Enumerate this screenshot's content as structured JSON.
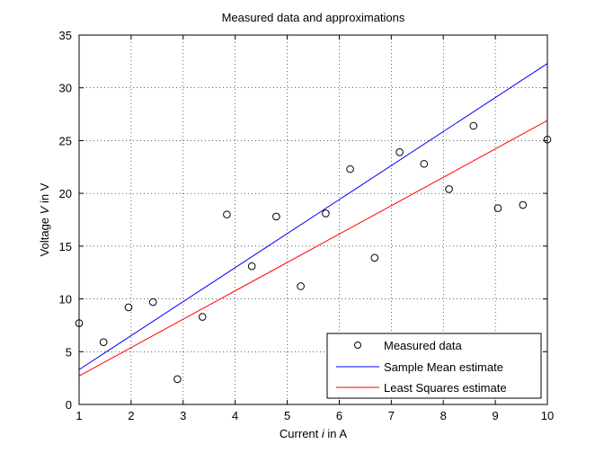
{
  "chart_data": {
    "type": "scatter",
    "title": "Measured data and approximations",
    "xlabel": "Current i in A",
    "xlabel_parts": {
      "pre": "Current ",
      "var": "i",
      "post": " in A"
    },
    "ylabel": "Voltage V in V",
    "ylabel_parts": {
      "pre": "Voltage ",
      "var": "V",
      "post": " in V"
    },
    "xlim": [
      1,
      10
    ],
    "ylim": [
      0,
      35
    ],
    "xticks": [
      1,
      2,
      3,
      4,
      5,
      6,
      7,
      8,
      9,
      10
    ],
    "yticks": [
      0,
      5,
      10,
      15,
      20,
      25,
      30,
      35
    ],
    "grid": true,
    "legend_position": "bottom-right",
    "series": [
      {
        "name": "Measured data",
        "kind": "markers",
        "marker": "circle-open",
        "color": "#000000",
        "x": [
          1.0,
          1.47,
          1.95,
          2.42,
          2.89,
          3.37,
          3.84,
          4.32,
          4.79,
          5.26,
          5.74,
          6.21,
          6.68,
          7.16,
          7.63,
          8.11,
          8.58,
          9.05,
          9.53,
          10.0
        ],
        "y": [
          7.7,
          5.9,
          9.2,
          9.7,
          2.4,
          8.3,
          18.0,
          13.1,
          17.8,
          11.2,
          18.1,
          22.3,
          13.9,
          23.9,
          22.8,
          20.4,
          26.4,
          18.6,
          18.9,
          25.1
        ]
      },
      {
        "name": "Sample Mean estimate",
        "kind": "line",
        "color": "#0000ff",
        "x": [
          1,
          10
        ],
        "y": [
          3.3,
          32.3
        ]
      },
      {
        "name": "Least Squares estimate",
        "kind": "line",
        "color": "#ff0000",
        "x": [
          1,
          10
        ],
        "y": [
          2.7,
          26.9
        ]
      }
    ]
  }
}
